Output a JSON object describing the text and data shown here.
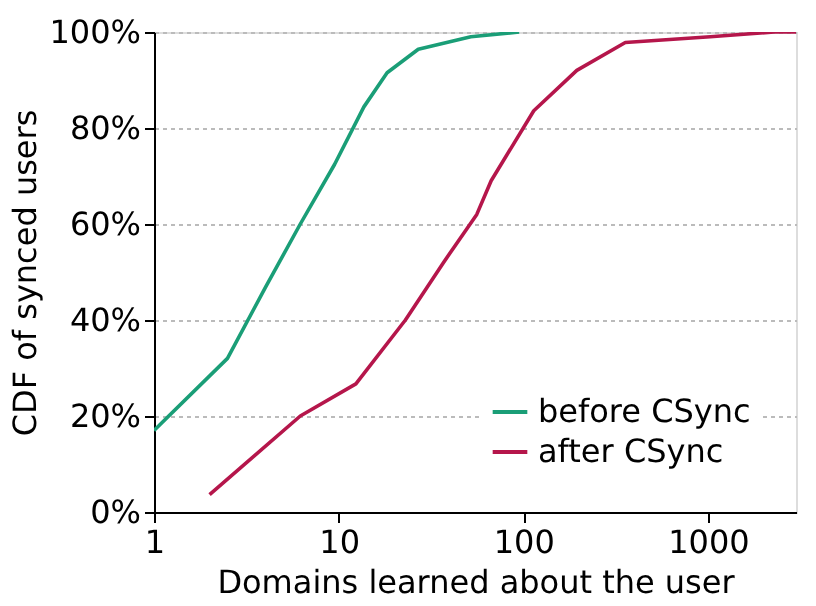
{
  "chart_data": {
    "type": "line",
    "xlabel": "Domains learned about the user",
    "ylabel": "CDF of synced users",
    "log": "x",
    "xlim": [
      1,
      3000
    ],
    "xticks": [
      1,
      10,
      100,
      1000
    ],
    "ylim": [
      0,
      100
    ],
    "yticks": [
      {
        "value": 0,
        "label": "0%"
      },
      {
        "value": 20,
        "label": "20%"
      },
      {
        "value": 40,
        "label": "40%"
      },
      {
        "value": 60,
        "label": "60%"
      },
      {
        "value": 80,
        "label": "80%"
      },
      {
        "value": 100,
        "label": "100%"
      }
    ],
    "grid": "y",
    "legend": "bottom right",
    "line_style": "solid",
    "marker": "none",
    "series": [
      {
        "name": "before CSync",
        "color": "#1a9e77",
        "x": [
          1,
          2.5,
          4,
          6.2,
          9.5,
          13.7,
          18.3,
          27,
          52,
          95
        ],
        "values": [
          17,
          32,
          46.7,
          60,
          72.4,
          84.4,
          91.5,
          96.4,
          99,
          100
        ]
      },
      {
        "name": "after CSync",
        "color": "#b5164b",
        "x": [
          2,
          6.2,
          12.4,
          23,
          37,
          56,
          67,
          114,
          195,
          357,
          1030,
          2280,
          3000
        ],
        "values": [
          3.6,
          20,
          26.7,
          40,
          52,
          62,
          69,
          83.6,
          92,
          97.8,
          99,
          100,
          100
        ]
      }
    ]
  }
}
